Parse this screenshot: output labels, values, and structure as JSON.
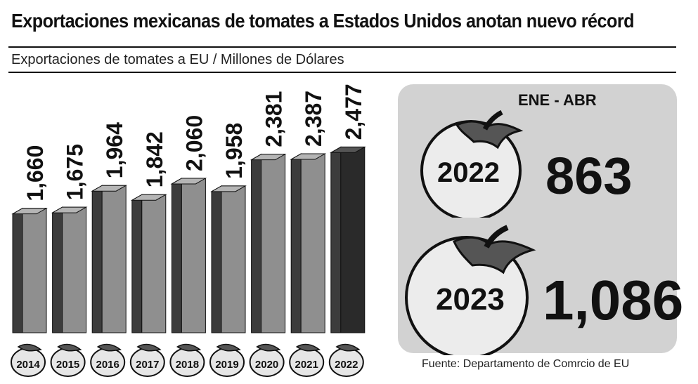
{
  "title": "Exportaciones mexicanas de tomates a Estados Unidos anotan nuevo récord",
  "subtitle": "Exportaciones de tomates a EU / Millones de Dólares",
  "chart_data": {
    "type": "bar",
    "categories": [
      "2014",
      "2015",
      "2016",
      "2017",
      "2018",
      "2019",
      "2020",
      "2021",
      "2022"
    ],
    "values": [
      1660,
      1675,
      1964,
      1842,
      2060,
      1958,
      2381,
      2387,
      2477
    ],
    "value_labels": [
      "1,660",
      "1,675",
      "1,964",
      "1,842",
      "2,060",
      "1,958",
      "2,381",
      "2,387",
      "2,477"
    ],
    "ylim": [
      0,
      2500
    ],
    "highlight_category": "2022"
  },
  "comparison": {
    "period": "ENE - ABR",
    "items": [
      {
        "year": "2022",
        "value": "863"
      },
      {
        "year": "2023",
        "value": "1,086"
      }
    ]
  },
  "source": "Fuente: Departamento de Comrcio de EU",
  "colors": {
    "bar_front": "#8f8f8f",
    "bar_side": "#3c3c3c",
    "bar_top": "#b5b5b5",
    "highlight": "#2a2a2a",
    "panel": "#d2d2d2"
  }
}
